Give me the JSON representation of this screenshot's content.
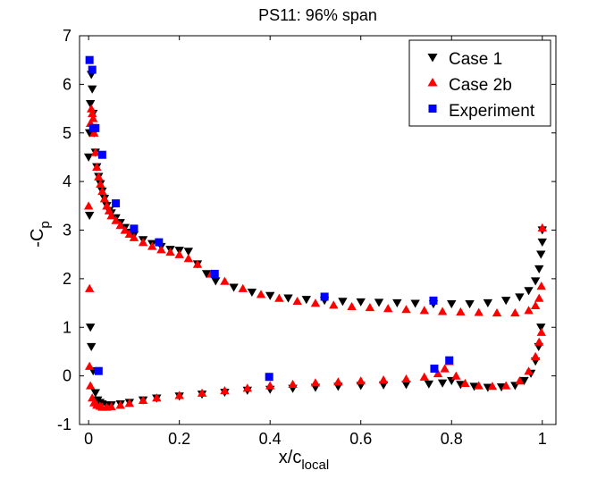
{
  "chart_data": {
    "type": "scatter",
    "title": "PS11: 96% span",
    "xlabel": {
      "main": "x/c",
      "sub": "local"
    },
    "ylabel": {
      "main": "-C",
      "sub": "p"
    },
    "xlim": [
      -0.02,
      1.03
    ],
    "ylim": [
      -1,
      7
    ],
    "x_ticks": [
      0,
      0.2,
      0.4,
      0.6,
      0.8,
      1
    ],
    "x_tick_labels": [
      "0",
      "0.2",
      "0.4",
      "0.6",
      "0.8",
      "1"
    ],
    "y_ticks": [
      -1,
      0,
      1,
      2,
      3,
      4,
      5,
      6,
      7
    ],
    "y_tick_labels": [
      "-1",
      "0",
      "1",
      "2",
      "3",
      "4",
      "5",
      "6",
      "7"
    ],
    "legend_position": "top-right",
    "series": [
      {
        "name": "Case 1",
        "marker": "triangle-down",
        "color": "#000000",
        "x": [
          0.0,
          0.002,
          0.004,
          0.006,
          0.008,
          0.01,
          0.012,
          0.015,
          0.018,
          0.022,
          0.026,
          0.03,
          0.035,
          0.04,
          0.045,
          0.05,
          0.06,
          0.07,
          0.08,
          0.09,
          0.1,
          0.12,
          0.14,
          0.16,
          0.18,
          0.2,
          0.22,
          0.24,
          0.26,
          0.28,
          0.32,
          0.36,
          0.4,
          0.44,
          0.48,
          0.52,
          0.56,
          0.6,
          0.64,
          0.68,
          0.72,
          0.76,
          0.8,
          0.84,
          0.88,
          0.92,
          0.95,
          0.97,
          0.985,
          0.993,
          0.997,
          1.0,
          1.0,
          0.002,
          0.004,
          0.006,
          0.01,
          0.015,
          0.02,
          0.025,
          0.03,
          0.04,
          0.05,
          0.07,
          0.09,
          0.12,
          0.15,
          0.2,
          0.25,
          0.3,
          0.35,
          0.4,
          0.45,
          0.5,
          0.55,
          0.6,
          0.65,
          0.7,
          0.75,
          0.78,
          0.8,
          0.82,
          0.85,
          0.88,
          0.91,
          0.94,
          0.96,
          0.975,
          0.985,
          0.992,
          0.997
        ],
        "y": [
          4.5,
          5.0,
          5.6,
          6.2,
          5.9,
          5.4,
          5.0,
          4.6,
          4.3,
          4.1,
          3.95,
          3.8,
          3.65,
          3.5,
          3.4,
          3.35,
          3.25,
          3.15,
          3.05,
          2.95,
          2.9,
          2.8,
          2.72,
          2.66,
          2.6,
          2.58,
          2.56,
          2.3,
          2.1,
          1.95,
          1.82,
          1.72,
          1.65,
          1.6,
          1.57,
          1.55,
          1.53,
          1.52,
          1.51,
          1.5,
          1.49,
          1.48,
          1.48,
          1.48,
          1.5,
          1.55,
          1.62,
          1.75,
          1.95,
          2.2,
          2.5,
          2.75,
          3.0,
          3.3,
          1.0,
          0.6,
          0.1,
          -0.35,
          -0.5,
          -0.55,
          -0.58,
          -0.6,
          -0.6,
          -0.58,
          -0.55,
          -0.5,
          -0.46,
          -0.42,
          -0.38,
          -0.34,
          -0.3,
          -0.28,
          -0.26,
          -0.24,
          -0.22,
          -0.2,
          -0.19,
          -0.18,
          -0.17,
          -0.15,
          -0.1,
          -0.18,
          -0.22,
          -0.24,
          -0.23,
          -0.2,
          -0.1,
          0.05,
          0.3,
          0.6,
          1.0
        ]
      },
      {
        "name": "Case 2b",
        "marker": "triangle-up",
        "color": "#ff0000",
        "x": [
          0.0,
          0.002,
          0.004,
          0.006,
          0.008,
          0.01,
          0.012,
          0.015,
          0.018,
          0.022,
          0.026,
          0.03,
          0.035,
          0.04,
          0.045,
          0.05,
          0.06,
          0.07,
          0.08,
          0.09,
          0.1,
          0.12,
          0.14,
          0.16,
          0.18,
          0.2,
          0.22,
          0.24,
          0.27,
          0.3,
          0.34,
          0.38,
          0.42,
          0.46,
          0.5,
          0.54,
          0.58,
          0.62,
          0.66,
          0.7,
          0.74,
          0.78,
          0.82,
          0.86,
          0.9,
          0.94,
          0.97,
          0.985,
          0.993,
          0.998,
          1.0,
          0.002,
          0.004,
          0.008,
          0.012,
          0.018,
          0.025,
          0.03,
          0.04,
          0.05,
          0.07,
          0.09,
          0.12,
          0.15,
          0.2,
          0.25,
          0.3,
          0.35,
          0.4,
          0.45,
          0.5,
          0.55,
          0.6,
          0.65,
          0.7,
          0.74,
          0.77,
          0.785,
          0.795,
          0.81,
          0.83,
          0.86,
          0.89,
          0.92,
          0.95,
          0.97,
          0.985,
          0.993,
          0.998
        ],
        "y": [
          3.5,
          1.8,
          5.2,
          5.5,
          5.4,
          5.3,
          5.0,
          4.6,
          4.3,
          4.1,
          3.95,
          3.8,
          3.65,
          3.5,
          3.4,
          3.3,
          3.2,
          3.1,
          3.0,
          2.92,
          2.85,
          2.75,
          2.67,
          2.6,
          2.55,
          2.5,
          2.42,
          2.3,
          2.1,
          1.95,
          1.8,
          1.68,
          1.6,
          1.54,
          1.5,
          1.46,
          1.43,
          1.41,
          1.39,
          1.37,
          1.35,
          1.33,
          1.32,
          1.31,
          1.3,
          1.3,
          1.35,
          1.45,
          1.6,
          1.85,
          3.05,
          0.2,
          -0.2,
          -0.45,
          -0.55,
          -0.6,
          -0.62,
          -0.64,
          -0.64,
          -0.63,
          -0.6,
          -0.56,
          -0.5,
          -0.45,
          -0.4,
          -0.35,
          -0.3,
          -0.25,
          -0.2,
          -0.17,
          -0.14,
          -0.12,
          -0.1,
          -0.08,
          -0.06,
          -0.02,
          0.05,
          0.15,
          0.3,
          0.0,
          -0.15,
          -0.2,
          -0.21,
          -0.2,
          -0.1,
          0.1,
          0.4,
          0.7,
          0.9
        ]
      },
      {
        "name": "Experiment",
        "marker": "square",
        "color": "#0000ff",
        "x": [
          0.002,
          0.008,
          0.01,
          0.015,
          0.022,
          0.03,
          0.06,
          0.1,
          0.155,
          0.278,
          0.398,
          0.52,
          0.76,
          0.762,
          0.795
        ],
        "y": [
          6.5,
          6.3,
          5.1,
          5.1,
          0.1,
          4.55,
          3.55,
          3.03,
          2.75,
          2.1,
          -0.02,
          1.63,
          1.55,
          0.15,
          0.32
        ]
      }
    ]
  }
}
